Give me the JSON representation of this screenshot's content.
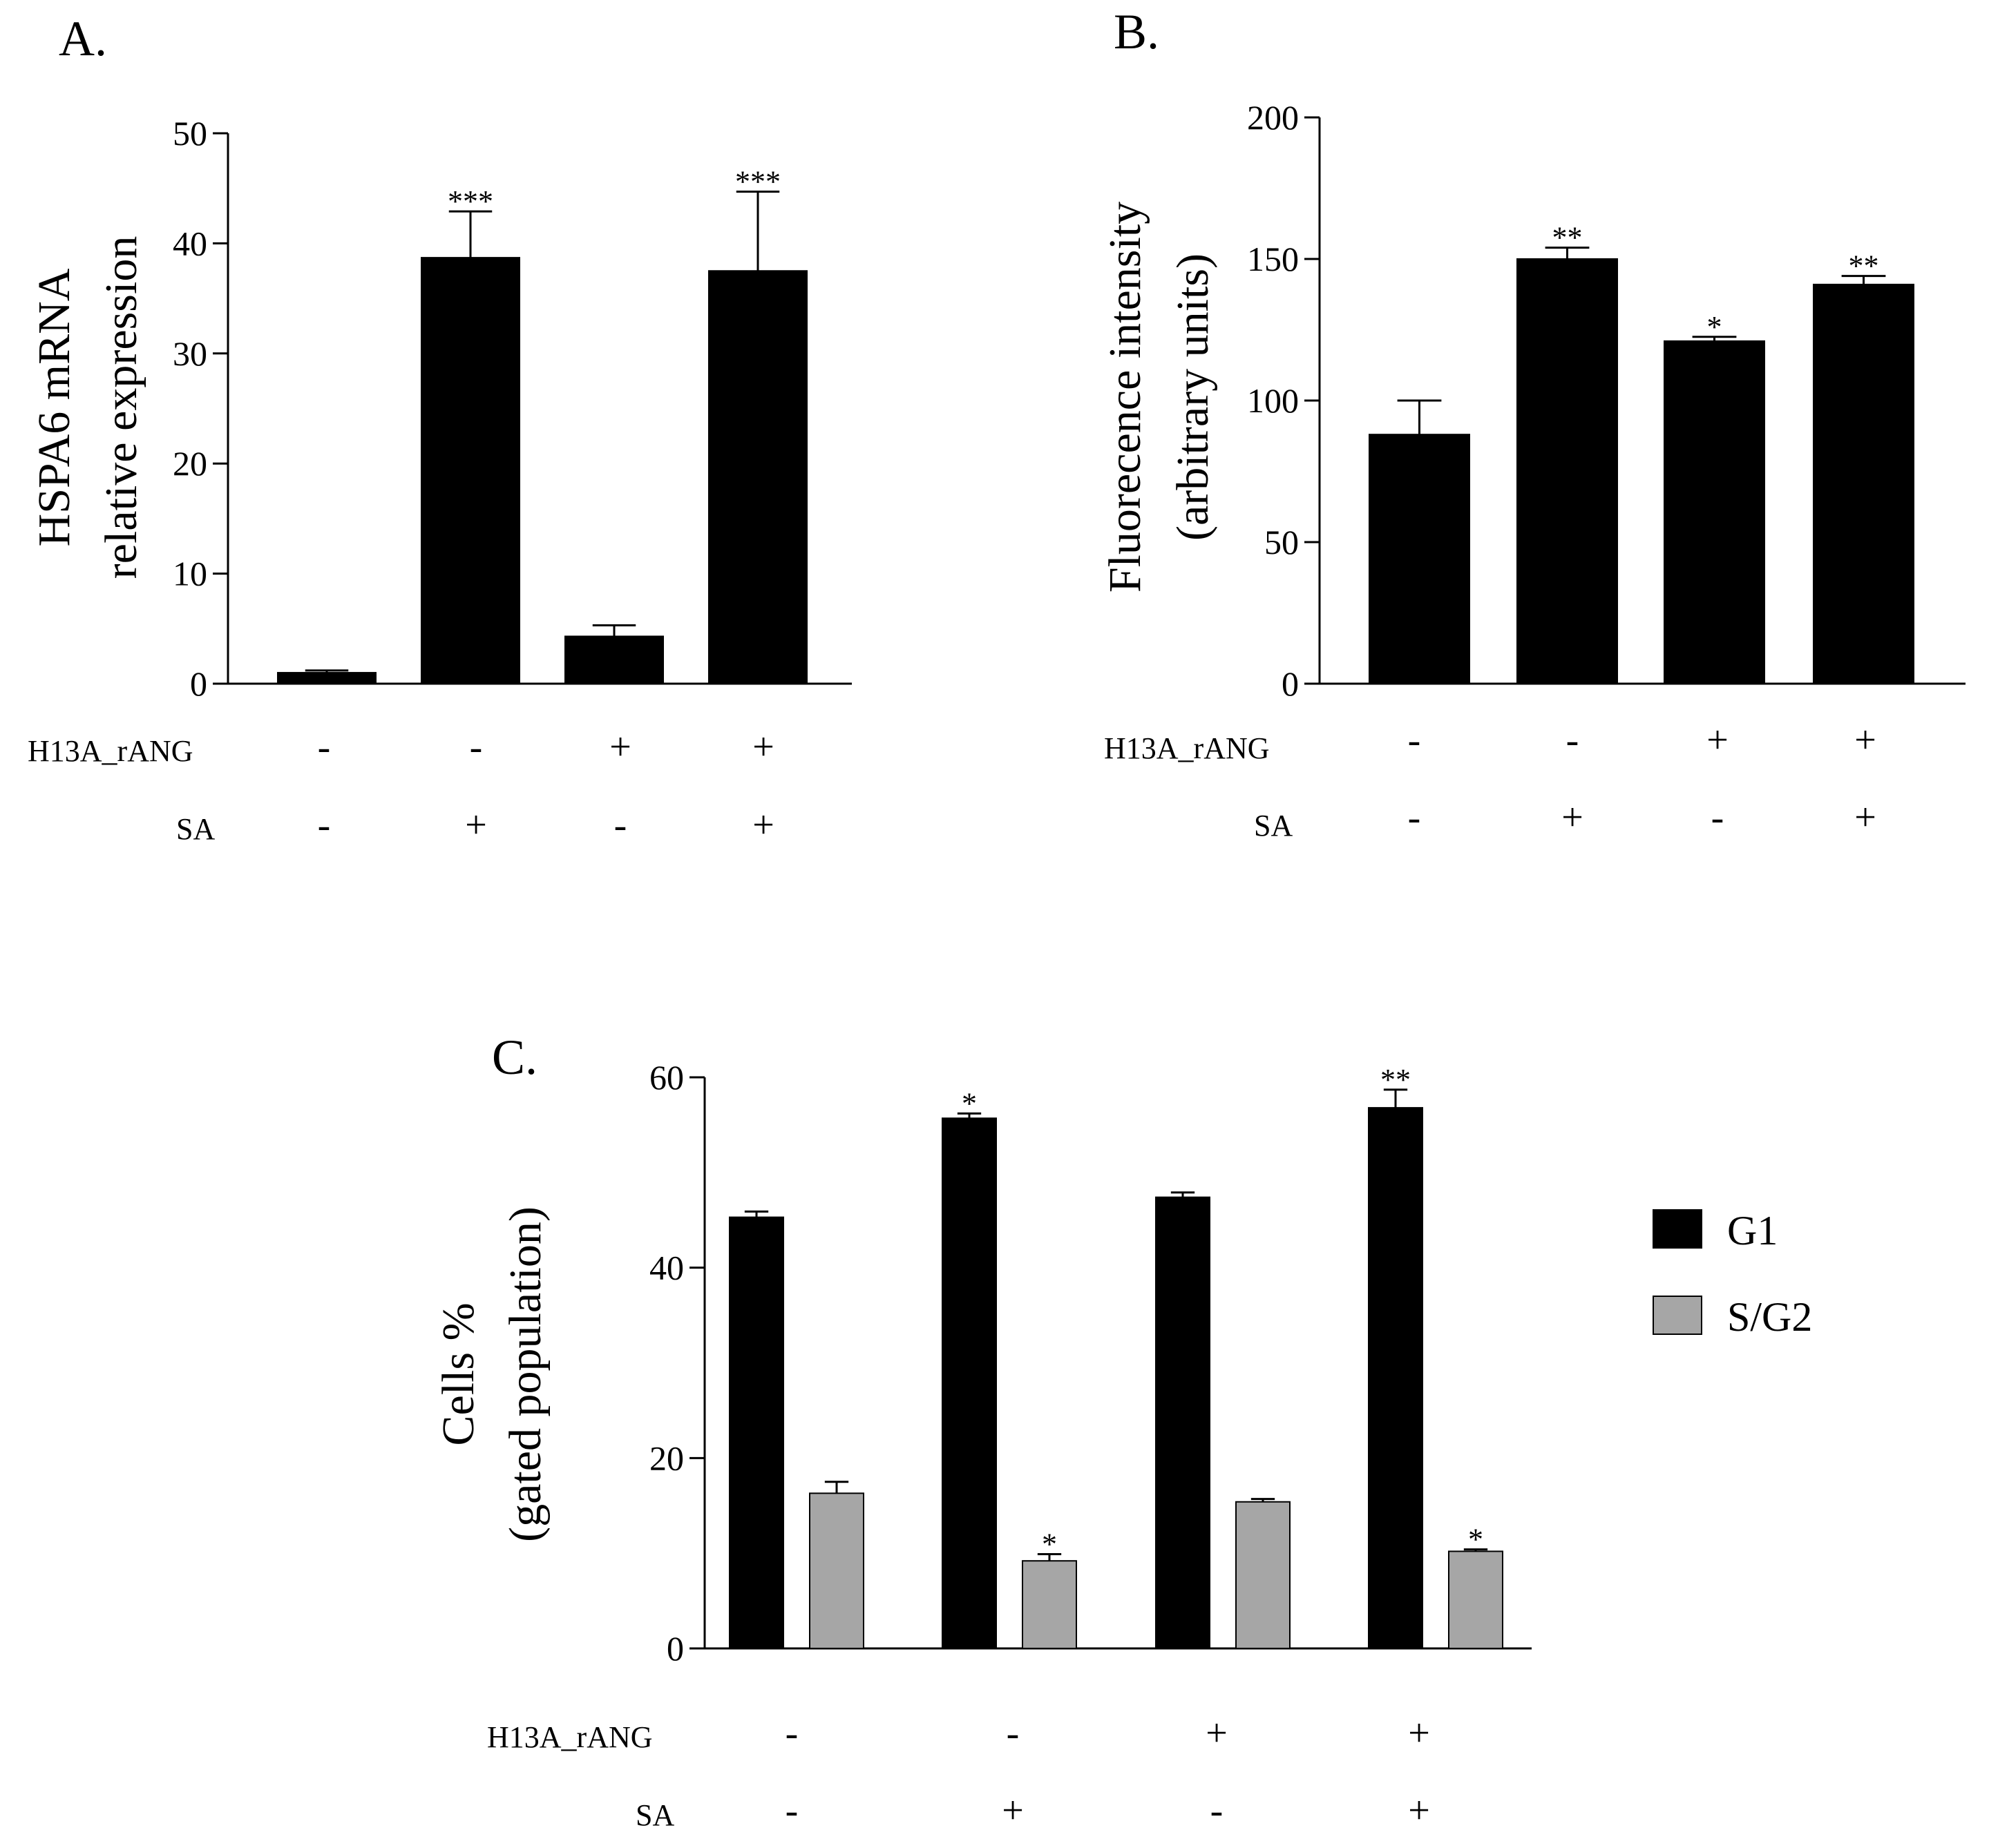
{
  "colors": {
    "bar_primary": "#000000",
    "bar_secondary": "#a6a6a6",
    "axis": "#000000"
  },
  "row_labels": {
    "h13a": "H13A_rANG",
    "sa": "SA"
  },
  "conditions": {
    "h13a": [
      "-",
      "-",
      "+",
      "+"
    ],
    "sa": [
      "-",
      "+",
      "-",
      "+"
    ]
  },
  "chart_data": [
    {
      "id": "A",
      "panel_label": "A.",
      "type": "bar",
      "ylabel_lines": [
        "HSPA6 mRNA",
        "relative expression"
      ],
      "ylim": [
        0,
        50
      ],
      "yticks": [
        "0",
        "10",
        "20",
        "30",
        "40",
        "50"
      ],
      "series": [
        {
          "name": "HSPA6",
          "values": [
            1.0,
            38.7,
            4.3,
            37.5
          ],
          "errors": [
            0.2,
            4.2,
            1.0,
            7.2
          ],
          "stars": [
            "",
            "***",
            "",
            "***"
          ]
        }
      ]
    },
    {
      "id": "B",
      "panel_label": "B.",
      "type": "bar",
      "ylabel_lines": [
        "Fluorecence intensity",
        "(arbitrary units)"
      ],
      "ylim": [
        0,
        200
      ],
      "yticks": [
        "0",
        "50",
        "100",
        "150",
        "200"
      ],
      "series": [
        {
          "name": "Fluorescence",
          "values": [
            88,
            150,
            121,
            141
          ],
          "errors": [
            12,
            4,
            1.5,
            3
          ],
          "stars": [
            "",
            "**",
            "*",
            "**"
          ]
        }
      ]
    },
    {
      "id": "C",
      "panel_label": "C.",
      "type": "bar",
      "ylabel_lines": [
        "Cells %",
        "(gated population)"
      ],
      "ylim": [
        0,
        60
      ],
      "yticks": [
        "0",
        "20",
        "40",
        "60"
      ],
      "legend": [
        "G1",
        "S/G2"
      ],
      "series": [
        {
          "name": "G1",
          "values": [
            45.3,
            55.7,
            47.4,
            56.8
          ],
          "errors": [
            0.6,
            0.5,
            0.5,
            1.9
          ],
          "stars": [
            "",
            "*",
            "",
            "**"
          ]
        },
        {
          "name": "S/G2",
          "values": [
            16.3,
            9.2,
            15.4,
            10.2
          ],
          "errors": [
            1.2,
            0.7,
            0.3,
            0.2
          ],
          "stars": [
            "",
            "*",
            "",
            "*"
          ]
        }
      ]
    }
  ]
}
